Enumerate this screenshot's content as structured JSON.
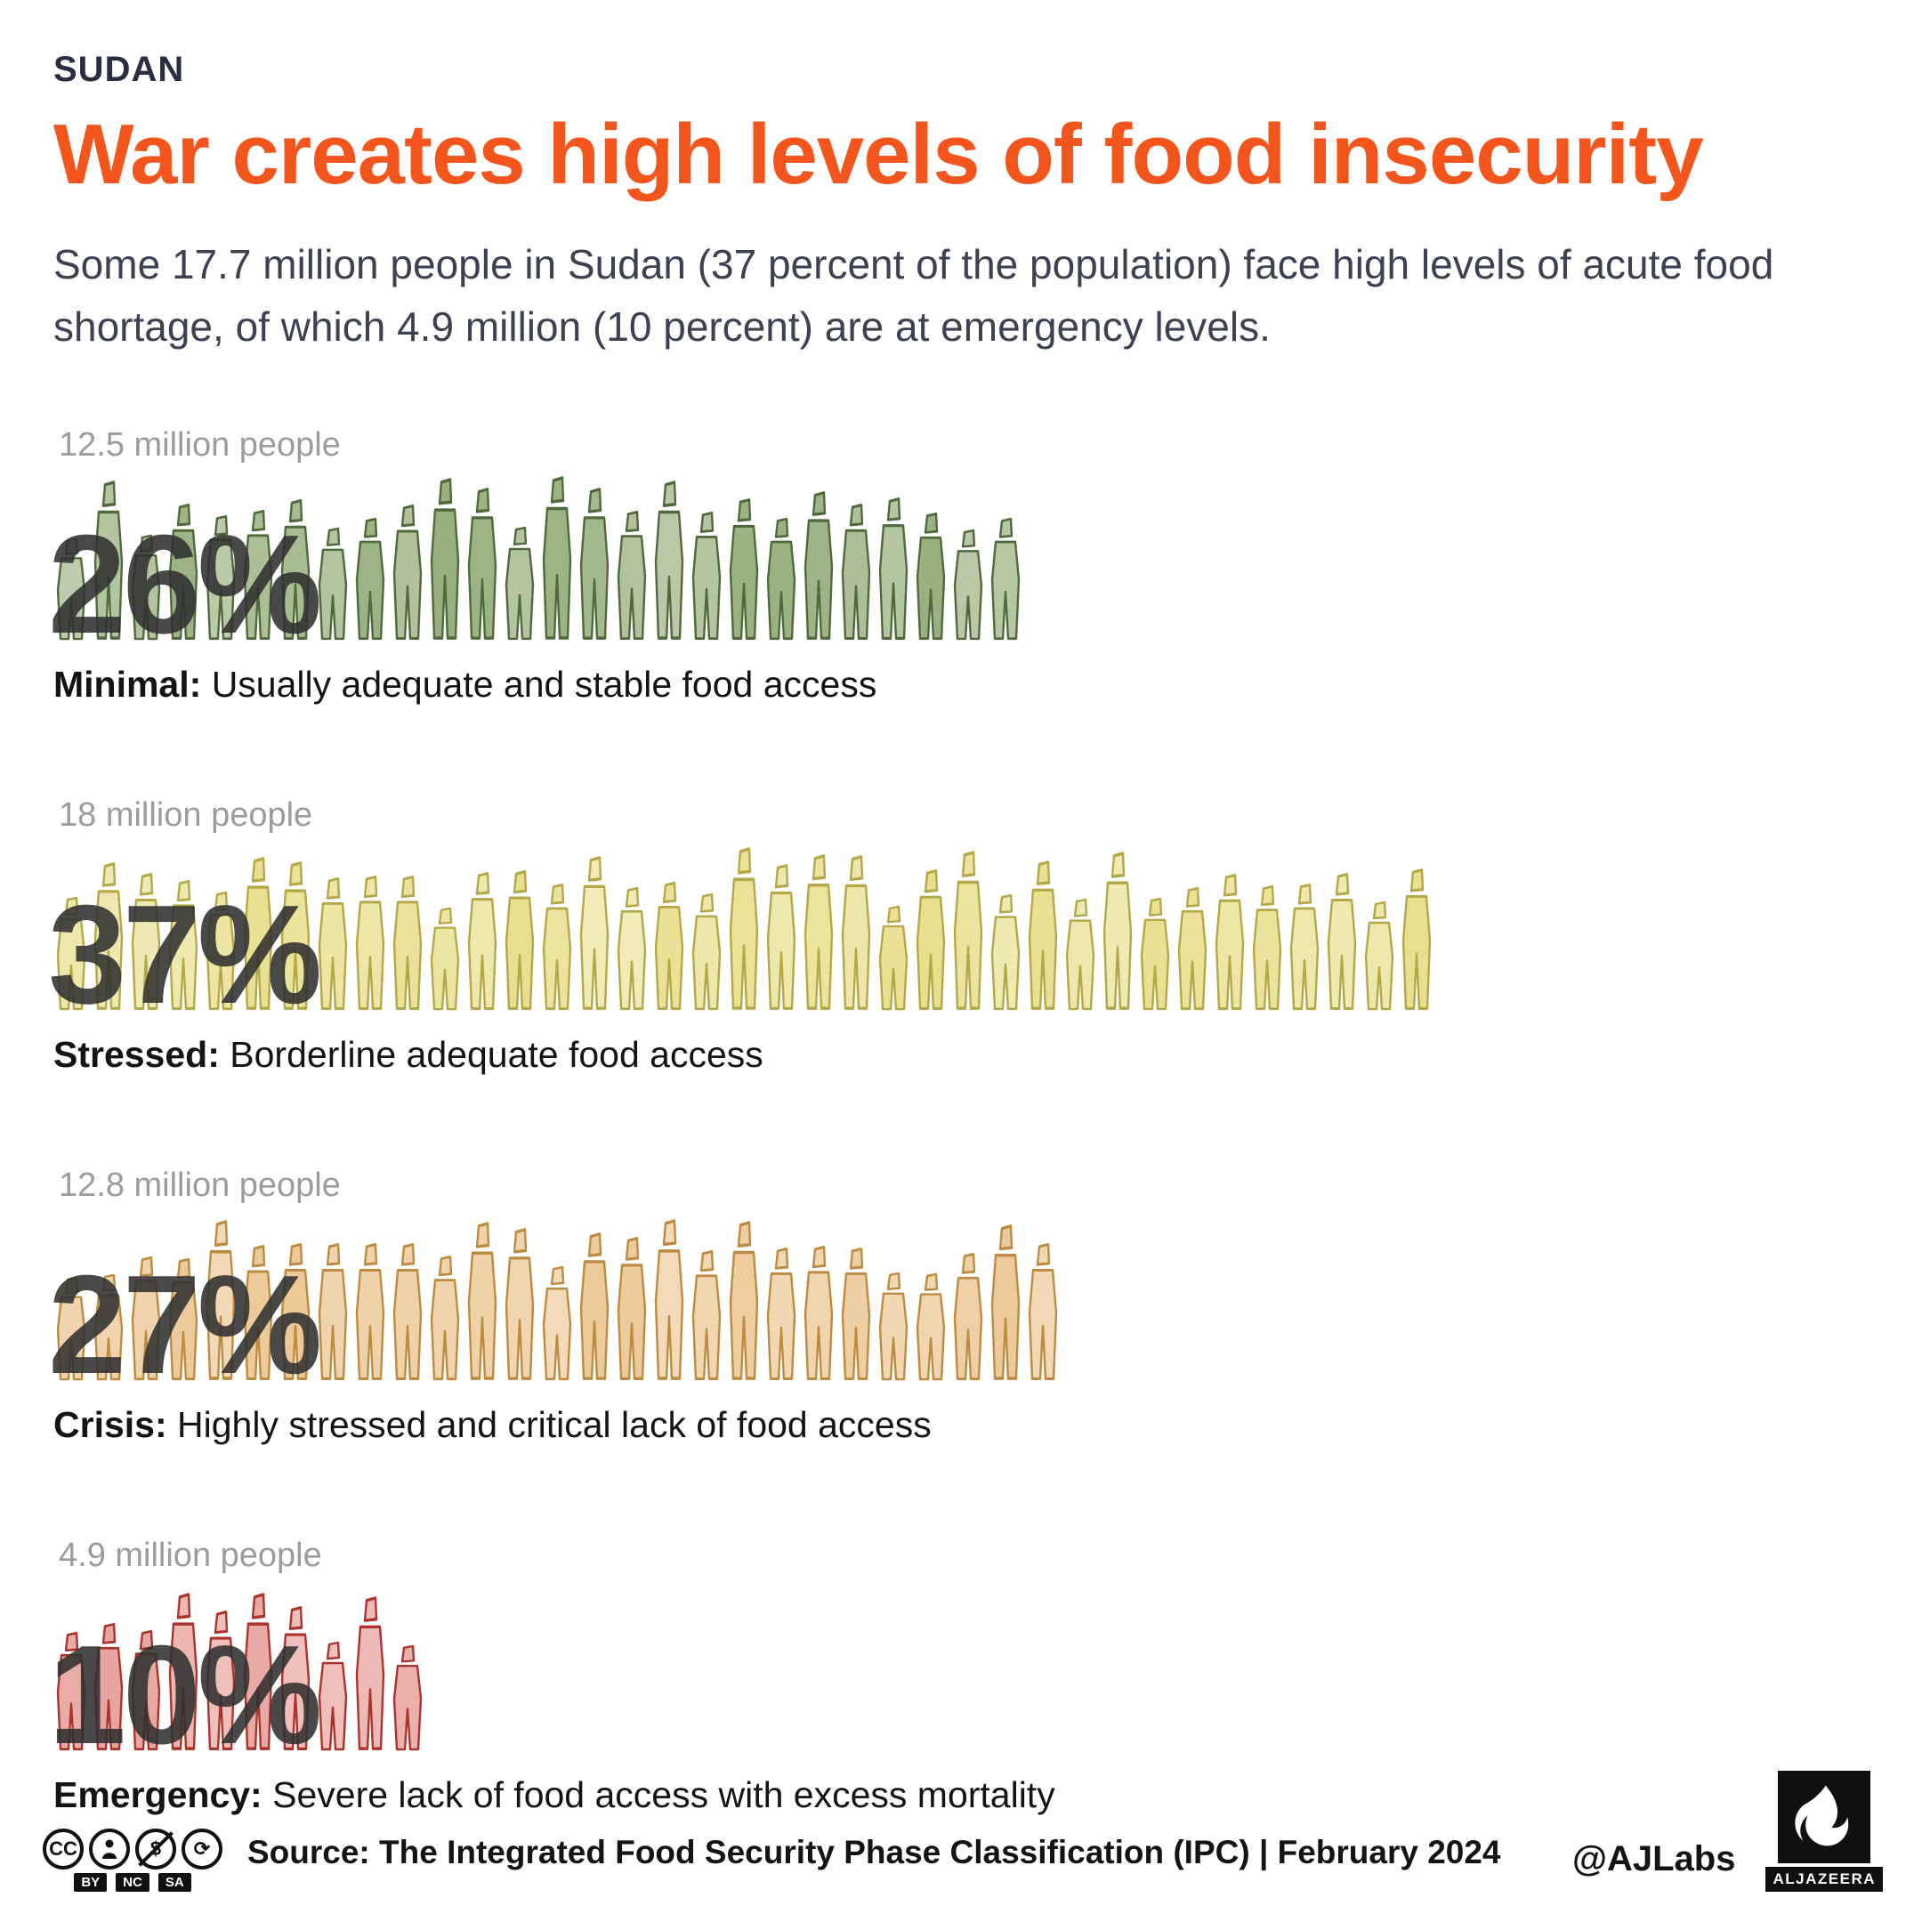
{
  "header": {
    "kicker": "SUDAN",
    "title": "War creates high levels of food insecurity",
    "subtitle": "Some 17.7 million people in Sudan (37 percent of the population) face high levels of acute food shortage, of which 4.9 million (10 percent) are at emergency levels."
  },
  "chart_data": {
    "type": "pictogram",
    "unit": "one person icon = 1 percent of population",
    "total_affected": "17.7 million people (37 percent) face high levels of acute food shortage",
    "emergency_total": "4.9 million (10 percent) are at emergency levels",
    "categories": [
      {
        "name": "Minimal",
        "label": "Minimal:",
        "description": "Usually adequate and stable food access",
        "people": "12.5 million people",
        "percent": 26,
        "percent_label": "26%",
        "fill": "#94ac79",
        "stroke": "#4f6b3c"
      },
      {
        "name": "Stressed",
        "label": "Stressed:",
        "description": "Borderline adequate food access",
        "people": "18 million people",
        "percent": 37,
        "percent_label": "37%",
        "fill": "#e7df8d",
        "stroke": "#b5a847"
      },
      {
        "name": "Crisis",
        "label": "Crisis:",
        "description": "Highly stressed and critical lack of food access",
        "people": "12.8 million people",
        "percent": 27,
        "percent_label": "27%",
        "fill": "#ecc795",
        "stroke": "#bd8c41"
      },
      {
        "name": "Emergency",
        "label": "Emergency:",
        "description": "Severe lack of food access with excess mortality",
        "people": "4.9 million people",
        "percent": 10,
        "percent_label": "10%",
        "fill": "#e7a09a",
        "stroke": "#ad342c"
      }
    ]
  },
  "footer": {
    "license_tags": [
      "BY",
      "NC",
      "SA"
    ],
    "source": "Source: The Integrated Food Security Phase Classification (IPC) | February 2024",
    "credit": "@AJLabs",
    "brand": "ALJAZEERA"
  }
}
